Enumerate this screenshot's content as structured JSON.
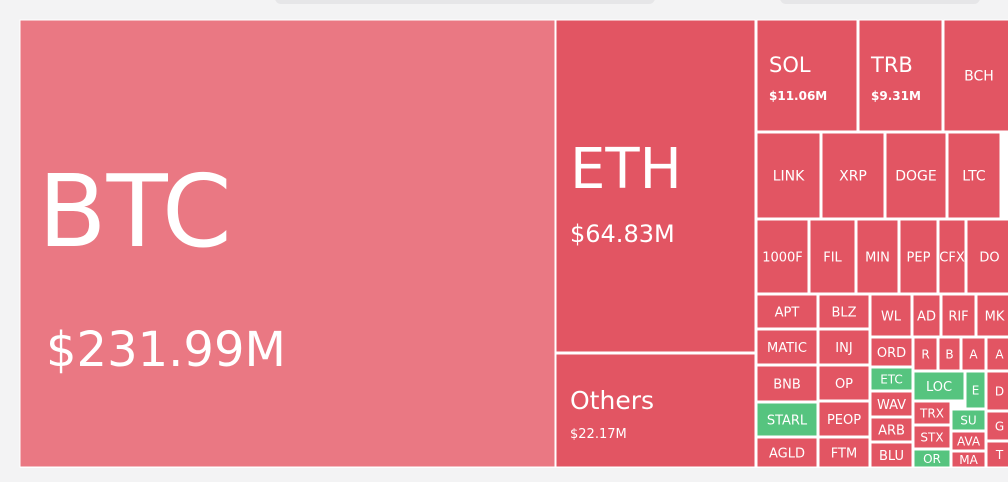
{
  "tiles": [
    {
      "label": "BTC",
      "value": "$231.99M",
      "color": "#ea7883"
    },
    {
      "label": "ETH",
      "value": "$64.83M",
      "color": "#e25563"
    },
    {
      "label": "Others",
      "value": "$22.17M",
      "color": "#e25563"
    },
    {
      "label": "SOL",
      "value": "$11.06M",
      "color": "#e25563"
    },
    {
      "label": "TRB",
      "value": "$9.31M",
      "color": "#e25563"
    },
    {
      "label": "BCH",
      "color": "#e25563"
    },
    {
      "label": "LINK",
      "color": "#e25563"
    },
    {
      "label": "XRP",
      "color": "#e25563"
    },
    {
      "label": "DOGE",
      "color": "#e25563"
    },
    {
      "label": "LTC",
      "color": "#e25563"
    },
    {
      "label": "1000F",
      "color": "#e25563"
    },
    {
      "label": "FIL",
      "color": "#e25563"
    },
    {
      "label": "MIN",
      "color": "#e25563"
    },
    {
      "label": "PEP",
      "color": "#e25563"
    },
    {
      "label": "CFX",
      "color": "#e25563"
    },
    {
      "label": "DO",
      "color": "#e25563"
    },
    {
      "label": "APT",
      "color": "#e25563"
    },
    {
      "label": "MATIC",
      "color": "#e25563"
    },
    {
      "label": "BNB",
      "color": "#e25563"
    },
    {
      "label": "STARL",
      "color": "#56c47f"
    },
    {
      "label": "AGLD",
      "color": "#e25563"
    },
    {
      "label": "BLZ",
      "color": "#e25563"
    },
    {
      "label": "INJ",
      "color": "#e25563"
    },
    {
      "label": "OP",
      "color": "#e25563"
    },
    {
      "label": "PEOP",
      "color": "#e25563"
    },
    {
      "label": "FTM",
      "color": "#e25563"
    },
    {
      "label": "WL",
      "color": "#e25563"
    },
    {
      "label": "AD",
      "color": "#e25563"
    },
    {
      "label": "RIF",
      "color": "#e25563"
    },
    {
      "label": "MK",
      "color": "#e25563"
    },
    {
      "label": "ORD",
      "color": "#e25563"
    },
    {
      "label": "ETC",
      "color": "#56c47f"
    },
    {
      "label": "WAV",
      "color": "#e25563"
    },
    {
      "label": "ARB",
      "color": "#e25563"
    },
    {
      "label": "BLU",
      "color": "#e25563"
    },
    {
      "label": "R",
      "color": "#e25563"
    },
    {
      "label": "B",
      "color": "#e25563"
    },
    {
      "label": "A",
      "color": "#e25563"
    },
    {
      "label": "A",
      "color": "#e25563"
    },
    {
      "label": "LOC",
      "color": "#56c47f"
    },
    {
      "label": "E",
      "color": "#56c47f"
    },
    {
      "label": "TRX",
      "color": "#e25563"
    },
    {
      "label": "STX",
      "color": "#e25563"
    },
    {
      "label": "OR",
      "color": "#56c47f"
    },
    {
      "label": "SU",
      "color": "#56c47f"
    },
    {
      "label": "AVA",
      "color": "#e25563"
    },
    {
      "label": "MA",
      "color": "#e25563"
    },
    {
      "label": "D",
      "color": "#e25563"
    },
    {
      "label": "G",
      "color": "#e25563"
    },
    {
      "label": "T",
      "color": "#e25563"
    }
  ]
}
